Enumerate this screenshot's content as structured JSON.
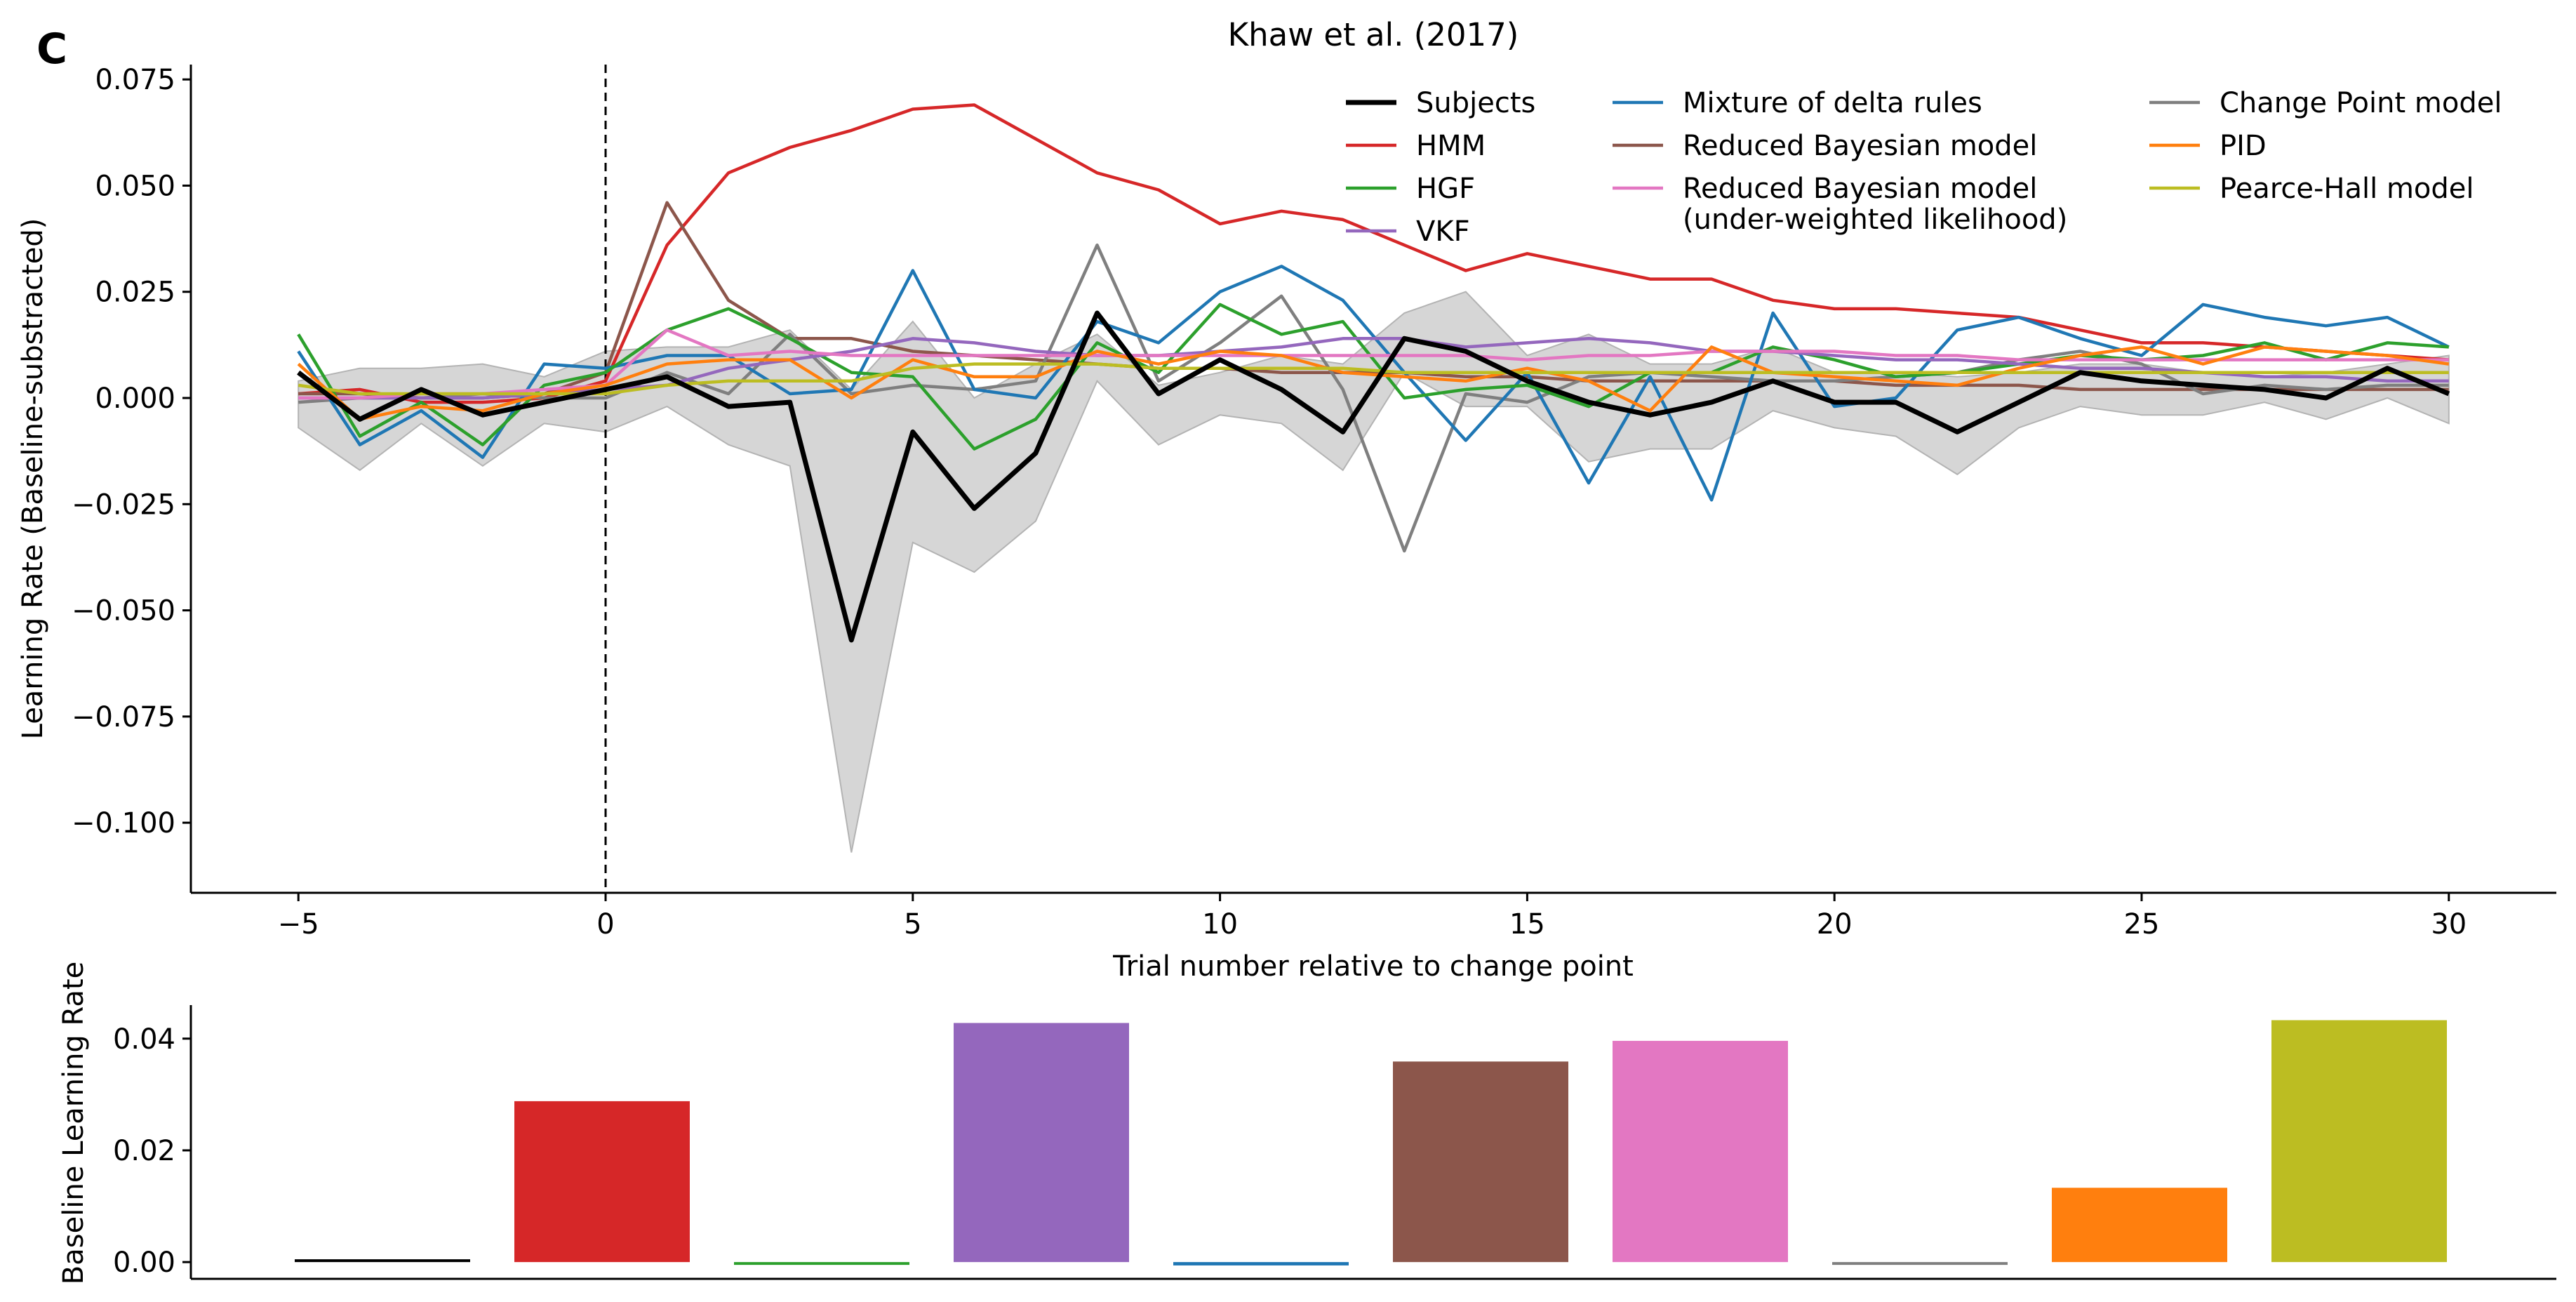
{
  "panel_letter": "C",
  "chart_data": [
    {
      "type": "line",
      "title": "Khaw et al. (2017)",
      "xlabel": "Trial number relative to change point",
      "ylabel": "Learning Rate (Baseline-substracted)",
      "xlim": [
        -6.75,
        31.75
      ],
      "ylim": [
        -0.1165,
        0.0785
      ],
      "xticks": [
        -5,
        0,
        5,
        10,
        15,
        20,
        25,
        30
      ],
      "xtick_labels": [
        "−5",
        "0",
        "5",
        "10",
        "15",
        "20",
        "25",
        "30"
      ],
      "yticks": [
        0.075,
        0.05,
        0.025,
        0.0,
        -0.025,
        -0.05,
        -0.075,
        -0.1
      ],
      "ytick_labels": [
        "0.075",
        "0.050",
        "0.025",
        "0.000",
        "−0.025",
        "−0.050",
        "−0.075",
        "−0.100"
      ],
      "vline": 0,
      "x": [
        -5,
        -4,
        -3,
        -2,
        -1,
        0,
        1,
        2,
        3,
        4,
        5,
        6,
        7,
        8,
        9,
        10,
        11,
        12,
        13,
        14,
        15,
        16,
        17,
        18,
        19,
        20,
        21,
        22,
        23,
        24,
        25,
        26,
        27,
        28,
        29,
        30
      ],
      "band": {
        "upper": [
          0.004,
          0.007,
          0.007,
          0.008,
          0.005,
          0.011,
          0.012,
          0.012,
          0.016,
          0.002,
          0.018,
          0.0,
          0.008,
          0.015,
          0.003,
          0.006,
          0.01,
          0.008,
          0.02,
          0.025,
          0.01,
          0.015,
          0.008,
          0.008,
          0.012,
          0.006,
          0.006,
          0.005,
          0.006,
          0.008,
          0.008,
          0.006,
          0.005,
          0.006,
          0.008,
          0.01
        ],
        "lower": [
          -0.007,
          -0.017,
          -0.006,
          -0.016,
          -0.006,
          -0.008,
          -0.002,
          -0.011,
          -0.016,
          -0.107,
          -0.034,
          -0.041,
          -0.029,
          0.004,
          -0.011,
          -0.004,
          -0.006,
          -0.017,
          0.006,
          -0.002,
          -0.002,
          -0.015,
          -0.012,
          -0.012,
          -0.003,
          -0.007,
          -0.009,
          -0.018,
          -0.007,
          -0.002,
          -0.004,
          -0.004,
          -0.001,
          -0.005,
          0.0,
          -0.006
        ]
      },
      "series": [
        {
          "name": "HMM",
          "color": "#d62728",
          "values": [
            0.001,
            0.002,
            -0.001,
            -0.001,
            0.0,
            0.004,
            0.036,
            0.053,
            0.059,
            0.063,
            0.068,
            0.069,
            0.061,
            0.053,
            0.049,
            0.041,
            0.044,
            0.042,
            0.036,
            0.03,
            0.034,
            0.031,
            0.028,
            0.028,
            0.023,
            0.021,
            0.021,
            0.02,
            0.019,
            0.016,
            0.013,
            0.013,
            0.012,
            0.011,
            0.01,
            0.009
          ]
        },
        {
          "name": "Reduced Bayesian model",
          "color": "#8c564b",
          "values": [
            0.001,
            0.001,
            0.0,
            0.0,
            0.001,
            0.006,
            0.046,
            0.023,
            0.014,
            0.014,
            0.011,
            0.01,
            0.009,
            0.008,
            0.007,
            0.007,
            0.006,
            0.006,
            0.006,
            0.005,
            0.005,
            0.004,
            0.004,
            0.004,
            0.004,
            0.004,
            0.003,
            0.003,
            0.003,
            0.002,
            0.002,
            0.002,
            0.002,
            0.002,
            0.002,
            0.002
          ]
        },
        {
          "name": "Change Point model",
          "color": "#7f7f7f",
          "values": [
            -0.001,
            0.0,
            0.0,
            0.001,
            0.0,
            0.0,
            0.006,
            0.001,
            0.015,
            0.001,
            0.003,
            0.002,
            0.004,
            0.036,
            0.004,
            0.013,
            0.024,
            0.002,
            -0.036,
            0.001,
            -0.001,
            0.005,
            0.006,
            0.005,
            0.004,
            0.004,
            0.005,
            0.006,
            0.009,
            0.011,
            0.008,
            0.001,
            0.003,
            0.002,
            0.003,
            0.003
          ]
        },
        {
          "name": "Mixture of delta rules",
          "color": "#1f77b4",
          "values": [
            0.011,
            -0.011,
            -0.003,
            -0.014,
            0.008,
            0.007,
            0.01,
            0.01,
            0.001,
            0.002,
            0.03,
            0.002,
            0.0,
            0.018,
            0.013,
            0.025,
            0.031,
            0.023,
            0.006,
            -0.01,
            0.006,
            -0.02,
            0.005,
            -0.024,
            0.02,
            -0.002,
            0.0,
            0.016,
            0.019,
            0.014,
            0.01,
            0.022,
            0.019,
            0.017,
            0.019,
            0.012
          ]
        },
        {
          "name": "HGF",
          "color": "#2ca02c",
          "values": [
            0.015,
            -0.009,
            -0.001,
            -0.011,
            0.003,
            0.006,
            0.016,
            0.021,
            0.014,
            0.006,
            0.005,
            -0.012,
            -0.005,
            0.013,
            0.006,
            0.022,
            0.015,
            0.018,
            0.0,
            0.002,
            0.003,
            -0.002,
            0.006,
            0.006,
            0.012,
            0.009,
            0.005,
            0.006,
            0.008,
            0.01,
            0.009,
            0.01,
            0.013,
            0.009,
            0.013,
            0.012
          ]
        },
        {
          "name": "VKF",
          "color": "#9467bd",
          "values": [
            0.0,
            0.0,
            0.0,
            0.0,
            0.001,
            0.002,
            0.003,
            0.007,
            0.009,
            0.011,
            0.014,
            0.013,
            0.011,
            0.01,
            0.01,
            0.011,
            0.012,
            0.014,
            0.014,
            0.012,
            0.013,
            0.014,
            0.013,
            0.011,
            0.011,
            0.01,
            0.009,
            0.009,
            0.008,
            0.007,
            0.007,
            0.006,
            0.005,
            0.005,
            0.004,
            0.004
          ]
        },
        {
          "name": "Reduced Bayesian model\n(under-weighted likelihood)",
          "color": "#e377c2",
          "values": [
            0.0,
            0.0,
            0.001,
            0.001,
            0.002,
            0.003,
            0.016,
            0.01,
            0.011,
            0.01,
            0.01,
            0.01,
            0.01,
            0.01,
            0.01,
            0.01,
            0.01,
            0.01,
            0.01,
            0.01,
            0.009,
            0.01,
            0.01,
            0.011,
            0.011,
            0.011,
            0.01,
            0.01,
            0.009,
            0.009,
            0.009,
            0.009,
            0.009,
            0.009,
            0.009,
            0.009
          ]
        },
        {
          "name": "PID",
          "color": "#ff7f0e",
          "values": [
            0.008,
            -0.005,
            -0.002,
            -0.003,
            0.001,
            0.003,
            0.008,
            0.009,
            0.009,
            0.0,
            0.009,
            0.005,
            0.005,
            0.011,
            0.008,
            0.011,
            0.01,
            0.006,
            0.005,
            0.004,
            0.007,
            0.004,
            -0.003,
            0.012,
            0.006,
            0.005,
            0.004,
            0.003,
            0.007,
            0.01,
            0.012,
            0.008,
            0.012,
            0.011,
            0.01,
            0.008
          ]
        },
        {
          "name": "Pearce-Hall model",
          "color": "#bcbd22",
          "values": [
            0.003,
            0.001,
            0.001,
            0.001,
            0.001,
            0.001,
            0.003,
            0.004,
            0.004,
            0.004,
            0.007,
            0.008,
            0.008,
            0.008,
            0.007,
            0.007,
            0.007,
            0.007,
            0.006,
            0.006,
            0.006,
            0.006,
            0.006,
            0.006,
            0.006,
            0.006,
            0.006,
            0.006,
            0.006,
            0.006,
            0.006,
            0.006,
            0.006,
            0.006,
            0.006,
            0.006
          ]
        },
        {
          "name": "Subjects",
          "color": "#000000",
          "values": [
            0.006,
            -0.005,
            0.002,
            -0.004,
            -0.001,
            0.002,
            0.005,
            -0.002,
            -0.001,
            -0.057,
            -0.008,
            -0.026,
            -0.013,
            0.02,
            0.001,
            0.009,
            0.002,
            -0.008,
            0.014,
            0.011,
            0.004,
            -0.001,
            -0.004,
            -0.001,
            0.004,
            -0.001,
            -0.001,
            -0.008,
            -0.001,
            0.006,
            0.004,
            0.003,
            0.002,
            0.0,
            0.007,
            0.001
          ]
        }
      ],
      "legend": {
        "placement": "top-right",
        "columns": [
          [
            {
              "label": "Subjects",
              "color": "#000000"
            },
            {
              "label": "HMM",
              "color": "#d62728"
            },
            {
              "label": "HGF",
              "color": "#2ca02c"
            },
            {
              "label": "VKF",
              "color": "#9467bd"
            }
          ],
          [
            {
              "label": "Mixture of delta rules",
              "color": "#1f77b4"
            },
            {
              "label": "Reduced Bayesian model",
              "color": "#8c564b"
            },
            {
              "label": "Reduced Bayesian model\n(under-weighted likelihood)",
              "color": "#e377c2"
            }
          ],
          [
            {
              "label": "Change Point model",
              "color": "#7f7f7f"
            },
            {
              "label": "PID",
              "color": "#ff7f0e"
            },
            {
              "label": "Pearce-Hall model",
              "color": "#bcbd22"
            }
          ]
        ]
      }
    },
    {
      "type": "bar",
      "ylabel": "Baseline Learning Rate",
      "ylim": [
        -0.003,
        0.046
      ],
      "yticks": [
        0.0,
        0.02,
        0.04
      ],
      "ytick_labels": [
        "0.00",
        "0.02",
        "0.04"
      ],
      "categories": [
        "Subjects",
        "HMM",
        "HGF",
        "VKF",
        "Mixture of delta rules",
        "Reduced Bayesian model",
        "Reduced Bayesian model (under-weighted likelihood)",
        "Change Point model",
        "PID",
        "Pearce-Hall model"
      ],
      "values": [
        0.0003,
        0.0288,
        -0.0003,
        0.0428,
        -0.0006,
        0.0359,
        0.0396,
        -0.0004,
        0.0133,
        0.0433
      ],
      "colors": [
        "#000000",
        "#d62728",
        "#2ca02c",
        "#9467bd",
        "#1f77b4",
        "#8c564b",
        "#e377c2",
        "#7f7f7f",
        "#ff7f0e",
        "#bcbd22"
      ]
    }
  ]
}
